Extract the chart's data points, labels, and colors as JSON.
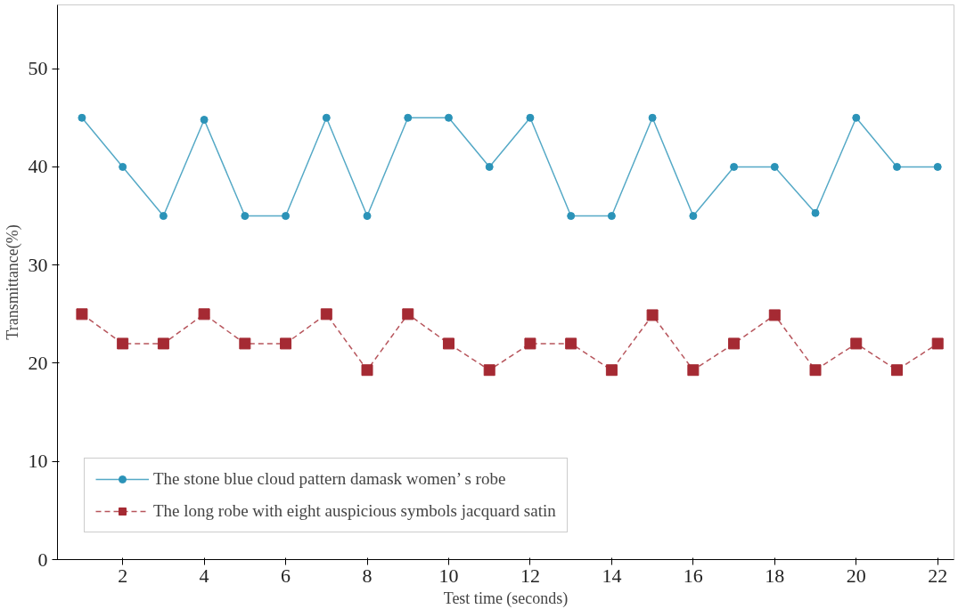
{
  "chart_data": {
    "type": "line",
    "xlabel": "Test time (seconds)",
    "ylabel": "Transmittance(%)",
    "x": [
      1,
      2,
      3,
      4,
      5,
      6,
      7,
      8,
      9,
      10,
      11,
      12,
      13,
      14,
      15,
      16,
      17,
      18,
      19,
      20,
      21,
      22
    ],
    "series": [
      {
        "name": "The stone blue cloud pattern damask women’ s robe",
        "color": "#2b93b8",
        "marker": "circle",
        "line_style": "solid",
        "values": [
          45,
          40,
          35,
          44.8,
          35,
          35,
          45,
          35,
          45,
          45,
          40,
          45,
          35,
          35,
          45,
          35,
          40,
          40,
          35.3,
          45,
          40,
          40
        ]
      },
      {
        "name": "The long robe with eight auspicious symbols jacquard satin",
        "color": "#a52a33",
        "marker": "square",
        "line_style": "dashed",
        "values": [
          25,
          22,
          22,
          25,
          22,
          22,
          25,
          19.3,
          25,
          22,
          19.3,
          22,
          22,
          19.3,
          24.9,
          19.3,
          22,
          24.9,
          19.3,
          22,
          19.3,
          22
        ]
      }
    ],
    "xlim": [
      0.4,
      22.4
    ],
    "ylim": [
      0,
      56.5
    ],
    "xticks": [
      2,
      4,
      6,
      8,
      10,
      12,
      14,
      16,
      18,
      20,
      22
    ],
    "yticks": [
      0,
      10,
      20,
      30,
      40,
      50
    ],
    "grid": false,
    "legend": "bottom left"
  }
}
